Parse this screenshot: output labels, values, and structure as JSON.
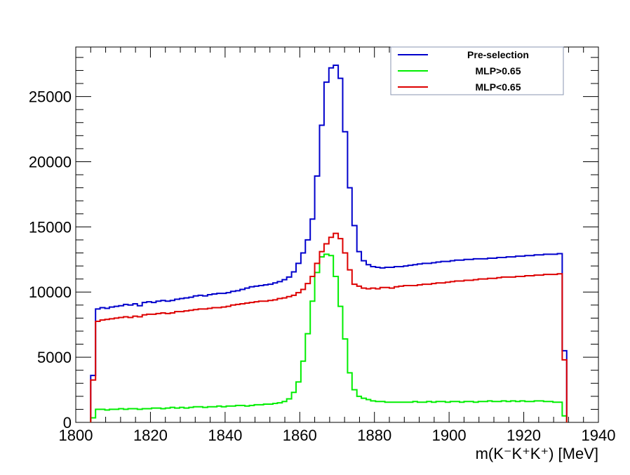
{
  "chart_data": {
    "type": "line",
    "style": "step-histogram",
    "xlabel": "m(K⁻K⁺K⁺) [MeV]",
    "ylabel": "",
    "title": "",
    "xlim": [
      1800,
      1940
    ],
    "ylim": [
      0,
      28800
    ],
    "x_ticks": [
      1800,
      1820,
      1840,
      1860,
      1880,
      1900,
      1920,
      1940
    ],
    "y_ticks": [
      0,
      5000,
      10000,
      15000,
      20000,
      25000
    ],
    "grid": false,
    "legend_position": "top-right",
    "bin_edges": [
      1804,
      1805.3,
      1806.5,
      1807.8,
      1809,
      1810.3,
      1811.5,
      1812.8,
      1814,
      1815.3,
      1816.5,
      1817.8,
      1819,
      1820.3,
      1821.5,
      1822.8,
      1824,
      1825.3,
      1826.5,
      1827.8,
      1829,
      1830.3,
      1831.5,
      1832.8,
      1834,
      1835.3,
      1836.5,
      1837.8,
      1839,
      1840.3,
      1841.5,
      1842.8,
      1844,
      1845.3,
      1846.5,
      1847.8,
      1849,
      1850.3,
      1851.5,
      1852.8,
      1854,
      1855.3,
      1856.5,
      1857.8,
      1859,
      1860.3,
      1861.5,
      1862.8,
      1864,
      1865.3,
      1866.5,
      1867.8,
      1869,
      1870.3,
      1871.5,
      1872.8,
      1874,
      1875.3,
      1876.5,
      1877.8,
      1879,
      1880.3,
      1881.5,
      1882.8,
      1884,
      1885.3,
      1886.5,
      1887.8,
      1889,
      1890.3,
      1891.5,
      1892.8,
      1894,
      1895.3,
      1896.5,
      1897.8,
      1899,
      1900.3,
      1901.5,
      1902.8,
      1904,
      1905.3,
      1906.5,
      1907.8,
      1909,
      1910.3,
      1911.5,
      1912.8,
      1914,
      1915.3,
      1916.5,
      1917.8,
      1919,
      1920.3,
      1921.5,
      1922.8,
      1924,
      1925.3,
      1926.5,
      1927.8,
      1929,
      1930.3,
      1931.5,
      1932.8,
      1934,
      1935.3,
      1936
    ],
    "series": [
      {
        "name": "Pre-selection",
        "color": "#0000cc",
        "values": [
          3600,
          8700,
          8800,
          8750,
          8850,
          8900,
          8950,
          9050,
          9000,
          9100,
          8950,
          9200,
          9250,
          9200,
          9300,
          9350,
          9300,
          9350,
          9450,
          9500,
          9550,
          9600,
          9700,
          9750,
          9700,
          9800,
          9850,
          9900,
          9900,
          9950,
          10050,
          10100,
          10200,
          10300,
          10400,
          10450,
          10500,
          10550,
          10600,
          10700,
          10800,
          10950,
          11150,
          11550,
          12200,
          13000,
          14000,
          15600,
          18900,
          22800,
          26100,
          27200,
          27400,
          26400,
          22300,
          18000,
          15100,
          13100,
          12400,
          12100,
          11950,
          11900,
          11850,
          11900,
          11900,
          11950,
          11950,
          12000,
          12050,
          12100,
          12150,
          12200,
          12200,
          12250,
          12300,
          12350,
          12350,
          12400,
          12450,
          12450,
          12500,
          12500,
          12550,
          12550,
          12550,
          12600,
          12600,
          12650,
          12650,
          12700,
          12700,
          12750,
          12750,
          12800,
          12800,
          12850,
          12850,
          12900,
          12900,
          12900,
          12950,
          5500
        ]
      },
      {
        "name": "MLP>0.65",
        "color": "#00ee00",
        "values": [
          350,
          1000,
          1000,
          950,
          1000,
          1000,
          1050,
          1000,
          1050,
          1050,
          1000,
          1050,
          1050,
          1100,
          1100,
          1050,
          1100,
          1150,
          1100,
          1150,
          1100,
          1150,
          1200,
          1200,
          1150,
          1200,
          1200,
          1250,
          1200,
          1250,
          1250,
          1300,
          1300,
          1250,
          1300,
          1350,
          1350,
          1400,
          1400,
          1450,
          1500,
          1600,
          1800,
          2300,
          3100,
          4700,
          6800,
          9300,
          11500,
          12700,
          12900,
          12800,
          11200,
          8900,
          6400,
          3800,
          2500,
          2000,
          1850,
          1750,
          1650,
          1600,
          1600,
          1550,
          1550,
          1550,
          1550,
          1550,
          1550,
          1600,
          1550,
          1550,
          1600,
          1550,
          1600,
          1600,
          1550,
          1600,
          1600,
          1550,
          1600,
          1600,
          1550,
          1600,
          1600,
          1650,
          1600,
          1600,
          1650,
          1600,
          1650,
          1600,
          1650,
          1600,
          1600,
          1650,
          1650,
          1600,
          1600,
          1550,
          1550,
          500
        ]
      },
      {
        "name": "MLP<0.65",
        "color": "#dd0000",
        "values": [
          3250,
          7750,
          7850,
          7900,
          7950,
          8000,
          8050,
          8100,
          8050,
          8150,
          8100,
          8250,
          8300,
          8300,
          8350,
          8400,
          8350,
          8400,
          8500,
          8500,
          8550,
          8600,
          8650,
          8700,
          8700,
          8750,
          8800,
          8800,
          8850,
          8900,
          9000,
          9050,
          9100,
          9150,
          9200,
          9250,
          9300,
          9300,
          9350,
          9400,
          9500,
          9550,
          9650,
          9750,
          9950,
          10200,
          10650,
          11200,
          12200,
          13100,
          13700,
          14200,
          14500,
          14100,
          13000,
          11700,
          10600,
          10450,
          10300,
          10250,
          10300,
          10250,
          10350,
          10350,
          10300,
          10400,
          10450,
          10500,
          10500,
          10500,
          10550,
          10600,
          10600,
          10650,
          10700,
          10700,
          10750,
          10800,
          10850,
          10850,
          10900,
          10900,
          10950,
          11000,
          11000,
          11050,
          11050,
          11100,
          11150,
          11150,
          11150,
          11200,
          11200,
          11250,
          11250,
          11300,
          11300,
          11350,
          11350,
          11350,
          11400,
          4800
        ]
      }
    ]
  },
  "legend": {
    "items": [
      {
        "label": "Pre-selection",
        "color": "#0000cc"
      },
      {
        "label": "MLP>0.65",
        "color": "#00ee00"
      },
      {
        "label": "MLP<0.65",
        "color": "#dd0000"
      }
    ]
  }
}
